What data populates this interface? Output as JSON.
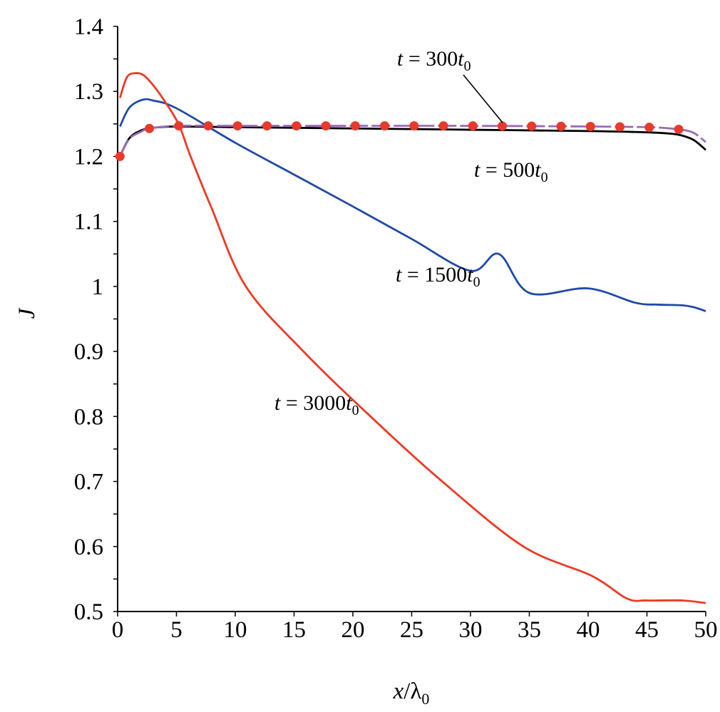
{
  "chart_data": {
    "type": "line",
    "title": "",
    "xlabel": "x/λ0",
    "ylabel": "J",
    "xlim": [
      0,
      50
    ],
    "ylim": [
      0.5,
      1.4
    ],
    "grid": false,
    "xticks": [
      "0",
      "5",
      "10",
      "15",
      "20",
      "25",
      "30",
      "35",
      "40",
      "45",
      "50"
    ],
    "yticks": [
      "0.5",
      "0.6",
      "0.7",
      "0.8",
      "0.9",
      "1",
      "1.1",
      "1.2",
      "1.3",
      "1.4"
    ],
    "series": [
      {
        "name": "t = 300t0",
        "color": "#9b6bb5",
        "dash": true,
        "marker_color": "#e8392b",
        "x": [
          0.2,
          1,
          2,
          2.7,
          5,
          10,
          20,
          30,
          40,
          45,
          47,
          48,
          49,
          50
        ],
        "y": [
          1.2,
          1.227,
          1.238,
          1.243,
          1.247,
          1.247,
          1.247,
          1.247,
          1.246,
          1.245,
          1.243,
          1.241,
          1.236,
          1.222
        ],
        "marker_x": [
          0.2,
          2.7,
          5.2,
          7.7,
          10.2,
          12.7,
          15.2,
          17.7,
          20.2,
          22.7,
          25.2,
          27.7,
          30.2,
          32.7,
          35.2,
          37.7,
          40.2,
          42.7,
          45.2,
          47.7
        ]
      },
      {
        "name": "t = 500t0",
        "color": "#000000",
        "x": [
          0.2,
          1,
          2,
          3,
          5,
          10,
          20,
          30,
          40,
          45,
          47,
          48,
          49,
          50
        ],
        "y": [
          1.2,
          1.228,
          1.24,
          1.244,
          1.246,
          1.245,
          1.243,
          1.241,
          1.239,
          1.237,
          1.235,
          1.232,
          1.225,
          1.21
        ]
      },
      {
        "name": "t = 1500t0",
        "color": "#1f4aa8",
        "x": [
          0.2,
          1,
          2.1,
          3,
          5,
          10,
          15,
          20,
          25,
          30,
          32.4,
          35,
          40,
          44,
          46,
          48,
          49,
          50
        ],
        "y": [
          1.246,
          1.275,
          1.287,
          1.286,
          1.274,
          1.221,
          1.172,
          1.123,
          1.073,
          1.024,
          1.05,
          0.99,
          0.997,
          0.975,
          0.972,
          0.971,
          0.968,
          0.962
        ]
      },
      {
        "name": "t = 3000t0",
        "color": "#ee3a24",
        "x": [
          0.2,
          0.8,
          1.5,
          2.2,
          3,
          4,
          5.2,
          6.2,
          8,
          10.9,
          15.8,
          21.5,
          27.6,
          34.5,
          40.3,
          43.3,
          45,
          48,
          50
        ],
        "y": [
          1.29,
          1.322,
          1.328,
          1.325,
          1.31,
          1.285,
          1.249,
          1.2,
          1.12,
          1.0,
          0.9,
          0.8,
          0.7,
          0.6,
          0.555,
          0.52,
          0.517,
          0.517,
          0.513
        ]
      }
    ],
    "annotations": [
      "t = 300t0",
      "t = 500t0",
      "t = 1500t0",
      "t = 3000t0"
    ]
  }
}
